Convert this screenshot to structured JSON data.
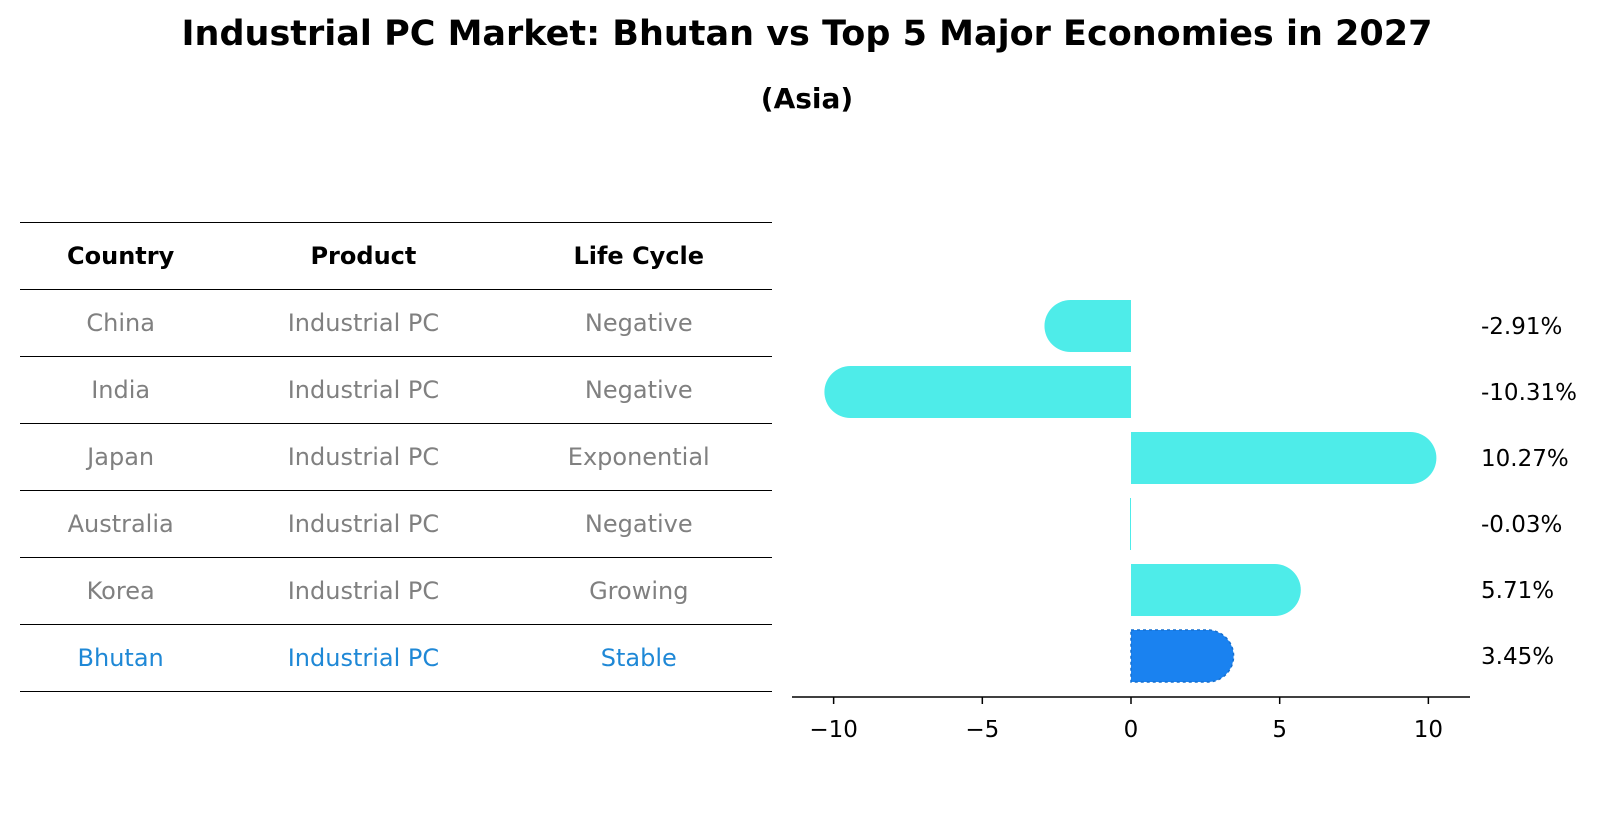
{
  "title": "Industrial PC Market: Bhutan vs Top 5 Major Economies in 2027",
  "subtitle": "(Asia)",
  "table": {
    "headers": [
      "Country",
      "Product",
      "Life Cycle"
    ],
    "rows": [
      [
        "China",
        "Industrial PC",
        "Negative"
      ],
      [
        "India",
        "Industrial PC",
        "Negative"
      ],
      [
        "Japan",
        "Industrial PC",
        "Exponential"
      ],
      [
        "Australia",
        "Industrial PC",
        "Negative"
      ],
      [
        "Korea",
        "Industrial PC",
        "Growing"
      ],
      [
        "Bhutan",
        "Industrial PC",
        "Stable"
      ]
    ]
  },
  "chart_data": {
    "type": "bar",
    "orientation": "horizontal",
    "categories": [
      "China",
      "India",
      "Japan",
      "Australia",
      "Korea",
      "Bhutan"
    ],
    "values": [
      -2.91,
      -10.31,
      10.27,
      -0.03,
      5.71,
      3.45
    ],
    "value_labels": [
      "-2.91%",
      "-10.31%",
      "10.27%",
      "-0.03%",
      "5.71%",
      "3.45%"
    ],
    "highlight": "Bhutan",
    "xlim": [
      -11.4,
      11.4
    ],
    "xticks": [
      -10,
      -5,
      0,
      5,
      10
    ],
    "xtick_labels": [
      "−10",
      "−5",
      "0",
      "5",
      "10"
    ],
    "xlabel": "",
    "ylabel": "",
    "colors": {
      "default": "#4eece9",
      "highlight": "#1a82f0"
    }
  }
}
